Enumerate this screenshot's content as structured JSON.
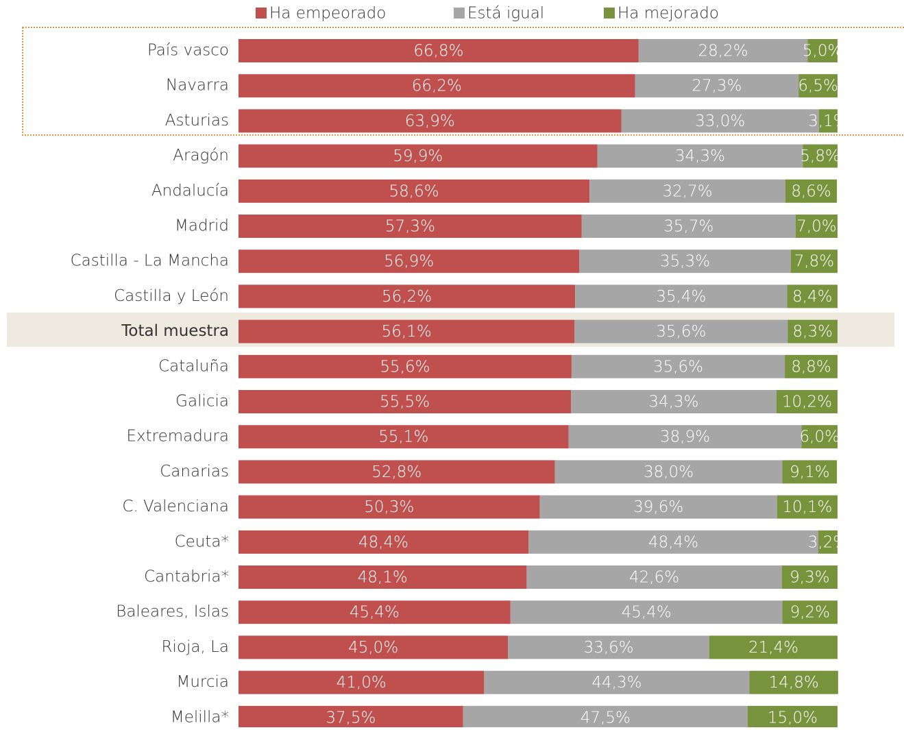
{
  "chart_data": {
    "type": "stacked-bar-horizontal",
    "categories": [
      "País vasco",
      "Navarra",
      "Asturias",
      "Aragón",
      "Andalucía",
      "Madrid",
      "Castilla - La Mancha",
      "Castilla y León",
      "Total muestra",
      "Cataluña",
      "Galicia",
      "Extremadura",
      "Canarias",
      "C. Valenciana",
      "Ceuta*",
      "Cantabria*",
      "Baleares, Islas",
      "Rioja, La",
      "Murcia",
      "Melilla*"
    ],
    "xlim": [
      0,
      100
    ],
    "legend": "top",
    "series": [
      {
        "name": "Ha empeorado",
        "color": "#c0504d",
        "values": [
          66.8,
          66.2,
          63.9,
          59.9,
          58.6,
          57.3,
          56.9,
          56.2,
          56.1,
          55.6,
          55.5,
          55.1,
          52.8,
          50.3,
          48.4,
          48.1,
          45.4,
          45.0,
          41.0,
          37.5
        ],
        "value_labels": [
          "66,8%",
          "66,2%",
          "63,9%",
          "59,9%",
          "58,6%",
          "57,3%",
          "56,9%",
          "56,2%",
          "56,1%",
          "55,6%",
          "55,5%",
          "55,1%",
          "52,8%",
          "50,3%",
          "48,4%",
          "48,1%",
          "45,4%",
          "45,0%",
          "41,0%",
          "37,5%"
        ]
      },
      {
        "name": "Está igual",
        "color": "#a6a6a6",
        "values": [
          28.2,
          27.3,
          33.0,
          34.3,
          32.7,
          35.7,
          35.3,
          35.4,
          35.6,
          35.6,
          34.3,
          38.9,
          38.0,
          39.6,
          48.4,
          42.6,
          45.4,
          33.6,
          44.3,
          47.5
        ],
        "value_labels": [
          "28,2%",
          "27,3%",
          "33,0%",
          "34,3%",
          "32,7%",
          "35,7%",
          "35,3%",
          "35,4%",
          "35,6%",
          "35,6%",
          "34,3%",
          "38,9%",
          "38,0%",
          "39,6%",
          "48,4%",
          "42,6%",
          "45,4%",
          "33,6%",
          "44,3%",
          "47,5%"
        ]
      },
      {
        "name": "Ha mejorado",
        "color": "#77933c",
        "values": [
          5.0,
          6.5,
          3.1,
          5.8,
          8.6,
          7.0,
          7.8,
          8.4,
          8.3,
          8.8,
          10.2,
          6.0,
          9.1,
          10.1,
          3.2,
          9.3,
          9.2,
          21.4,
          14.8,
          15.0
        ],
        "value_labels": [
          "5,0%",
          "6,5%",
          "3,1%",
          "5,8%",
          "8,6%",
          "7,0%",
          "7,8%",
          "8,4%",
          "8,3%",
          "8,8%",
          "10,2%",
          "6,0%",
          "9,1%",
          "10,1%",
          "3,2%",
          "9,3%",
          "9,2%",
          "21,4%",
          "14,8%",
          "15,0%"
        ]
      }
    ]
  }
}
